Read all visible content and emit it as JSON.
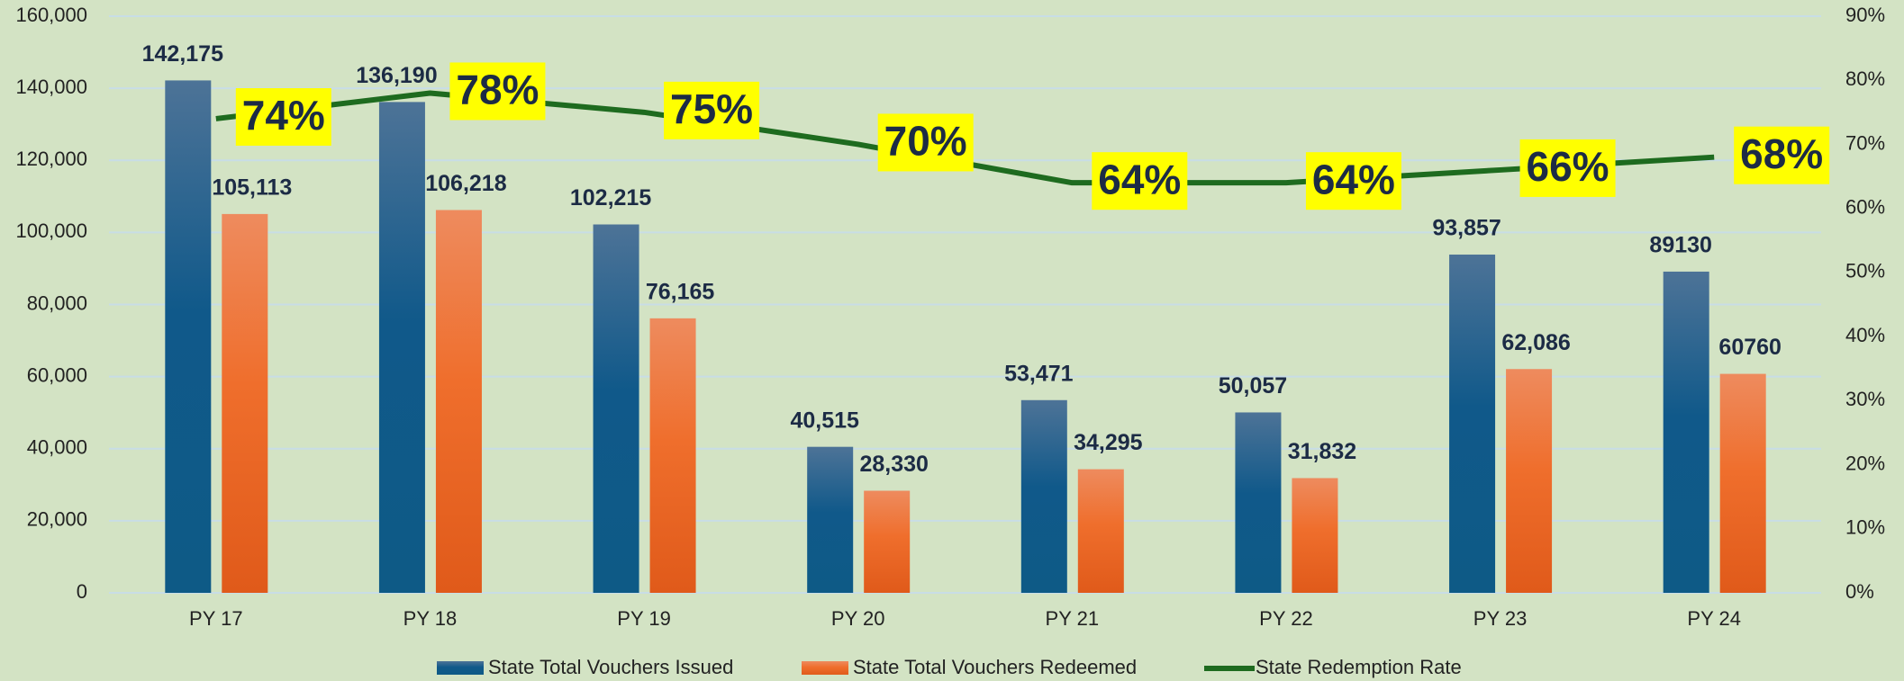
{
  "chart_data": {
    "type": "bar",
    "categories": [
      "PY 17",
      "PY 18",
      "PY 19",
      "PY 20",
      "PY 21",
      "PY 22",
      "PY 23",
      "PY 24"
    ],
    "series": [
      {
        "name": "State Total Vouchers Issued",
        "color": "#10598a",
        "values": [
          142175,
          136190,
          102215,
          40515,
          53471,
          50057,
          93857,
          89130
        ],
        "value_labels": [
          "142,175",
          "136,190",
          "102,215",
          "40,515",
          "53,471",
          "50,057",
          "93,857",
          "89130"
        ]
      },
      {
        "name": "State Total Vouchers Redeemed",
        "color": "#ec6a2a",
        "values": [
          105113,
          106218,
          76165,
          28330,
          34295,
          31832,
          62086,
          60760
        ],
        "value_labels": [
          "105,113",
          "106,218",
          "76,165",
          "28,330",
          "34,295",
          "31,832",
          "62,086",
          "60760"
        ]
      },
      {
        "name": "State Redemption Rate",
        "color": "#1e6b1f",
        "type": "line",
        "axis": "y2",
        "values": [
          74,
          78,
          75,
          70,
          64,
          64,
          66,
          68
        ],
        "value_labels": [
          "74%",
          "78%",
          "75%",
          "70%",
          "64%",
          "64%",
          "66%",
          "68%"
        ]
      }
    ],
    "ylim": [
      0,
      160000
    ],
    "yticks": [
      0,
      {
        "value": 20000,
        "label": "20,000"
      },
      {
        "value": 40000,
        "label": "40,000"
      },
      {
        "value": 60000,
        "label": "60,000"
      },
      {
        "value": 80000,
        "label": "80,000"
      },
      {
        "value": 100000,
        "label": "100,000"
      },
      {
        "value": 120000,
        "label": "120,000"
      },
      {
        "value": 140000,
        "label": "140,000"
      },
      {
        "value": 160000,
        "label": "160,000"
      }
    ],
    "y2lim": [
      0,
      90
    ],
    "y2ticks": [
      {
        "value": 0,
        "label": "0%"
      },
      {
        "value": 10,
        "label": "10%"
      },
      {
        "value": 20,
        "label": "20%"
      },
      {
        "value": 30,
        "label": "30%"
      },
      {
        "value": 40,
        "label": "40%"
      },
      {
        "value": 50,
        "label": "50%"
      },
      {
        "value": 60,
        "label": "60%"
      },
      {
        "value": 70,
        "label": "70%"
      },
      {
        "value": 80,
        "label": "80%"
      },
      {
        "value": 90,
        "label": "90%"
      }
    ],
    "grid": true,
    "legend": "bottom"
  }
}
